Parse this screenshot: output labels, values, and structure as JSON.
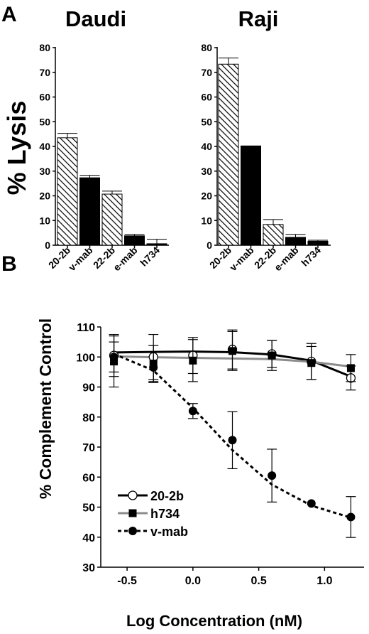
{
  "panel_labels": {
    "a": "A",
    "b": "B"
  },
  "shared": {
    "ylabel_a": "% Lysis"
  },
  "colors": {
    "black": "#000000",
    "gray": "#8c8c8c",
    "hatch": "#000000"
  },
  "chart_data": [
    {
      "type": "bar",
      "panel": "A",
      "title": "Daudi",
      "ylabel": "% Lysis",
      "xlabel": "",
      "ylim": [
        0,
        80
      ],
      "yticks": [
        0,
        10,
        20,
        30,
        40,
        50,
        60,
        70,
        80
      ],
      "categories": [
        "20-2b",
        "v-mab",
        "22-2b",
        "e-mab",
        "h734"
      ],
      "values": [
        43.5,
        27.3,
        20.7,
        3.8,
        0.6
      ],
      "errors": [
        1.8,
        1.0,
        1.2,
        0.6,
        1.8
      ],
      "fills": [
        "hatched",
        "solid",
        "hatched",
        "solid",
        "solid"
      ]
    },
    {
      "type": "bar",
      "panel": "A",
      "title": "Raji",
      "xlabel": "",
      "ylim": [
        0,
        80
      ],
      "yticks": [
        0,
        10,
        20,
        30,
        40,
        50,
        60,
        70,
        80
      ],
      "categories": [
        "20-2b",
        "v-mab",
        "22-2b",
        "e-mab",
        "h734"
      ],
      "values": [
        73.3,
        40.2,
        8.4,
        3.2,
        1.6
      ],
      "errors": [
        2.5,
        0.0,
        2.0,
        1.2,
        0.4
      ],
      "fills": [
        "hatched",
        "solid",
        "hatched",
        "solid",
        "solid"
      ]
    },
    {
      "type": "line",
      "panel": "B",
      "xlabel": "Log Concentration (nM)",
      "ylabel": "% Complement Control",
      "xlim": [
        -0.7,
        1.3
      ],
      "ylim": [
        30,
        110
      ],
      "xticks": [
        -0.5,
        0.0,
        0.5,
        1.0
      ],
      "xtick_labels": [
        "-0.5",
        "0.0",
        "0.5",
        "1.0"
      ],
      "yticks": [
        30,
        40,
        50,
        60,
        70,
        80,
        90,
        100,
        110
      ],
      "legend_position": "bottom-left",
      "series": [
        {
          "name": "20-2b",
          "marker": "open-circle",
          "line": "solid",
          "color": "#000000",
          "x": [
            -0.6,
            -0.3,
            0.0,
            0.3,
            0.6,
            0.9,
            1.2
          ],
          "y": [
            100.5,
            100.0,
            100.5,
            102.5,
            101.0,
            98.5,
            93.0
          ],
          "err": [
            7.0,
            7.5,
            6.0,
            6.5,
            4.5,
            6.0,
            4.0
          ],
          "fit_y": [
            101.5,
            101.7,
            101.8,
            101.6,
            100.8,
            98.8,
            93.5
          ]
        },
        {
          "name": "h734",
          "marker": "filled-square",
          "line": "solid",
          "color": "#8c8c8c",
          "x": [
            -0.6,
            -0.3,
            0.0,
            0.3,
            0.6,
            0.9,
            1.2
          ],
          "y": [
            98.5,
            97.8,
            98.8,
            102.0,
            100.5,
            98.0,
            96.3
          ],
          "err": [
            8.5,
            6.0,
            7.0,
            6.5,
            5.0,
            5.5,
            4.5
          ],
          "fit_y": [
            100.2,
            99.9,
            99.7,
            99.5,
            99.3,
            98.4,
            96.8
          ]
        },
        {
          "name": "v-mab",
          "marker": "filled-circle",
          "line": "dashed",
          "color": "#000000",
          "x": [
            -0.6,
            -0.3,
            0.0,
            0.3,
            0.6,
            0.9,
            1.2
          ],
          "y": [
            100.0,
            96.5,
            82.0,
            72.3,
            60.5,
            51.2,
            46.7
          ],
          "err": [
            5.0,
            5.0,
            2.5,
            9.5,
            8.8,
            0.0,
            6.8
          ],
          "fit_y": [
            101.0,
            95.5,
            83.0,
            69.0,
            57.5,
            50.5,
            46.5
          ]
        }
      ]
    }
  ]
}
